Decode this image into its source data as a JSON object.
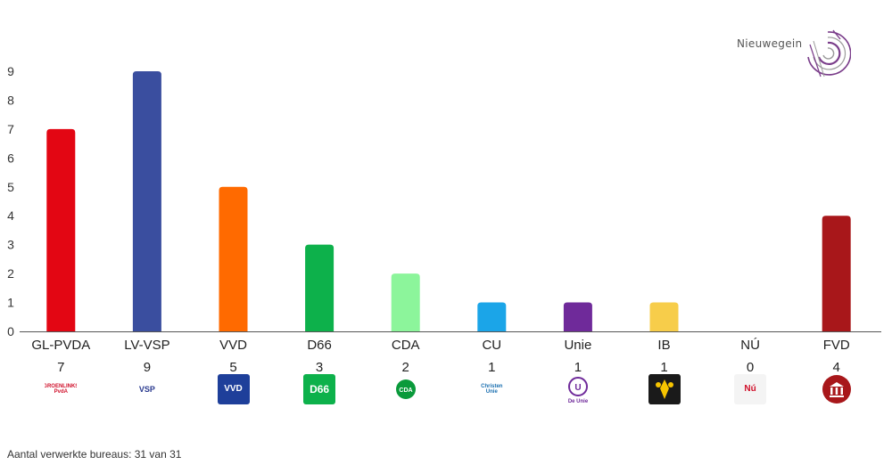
{
  "brand": {
    "name": "Nieuwegein"
  },
  "footer": {
    "label": "Aantal verwerkte bureaus: 31 van 31"
  },
  "chart_data": {
    "type": "bar",
    "title": "",
    "xlabel": "",
    "ylabel": "",
    "ylim": [
      0,
      9
    ],
    "yticks": [
      0,
      1,
      2,
      3,
      4,
      5,
      6,
      7,
      8,
      9
    ],
    "grid": false,
    "categories": [
      "GL-PVDA",
      "LV-VSP",
      "VVD",
      "D66",
      "CDA",
      "CU",
      "Unie",
      "IB",
      "NÚ",
      "FVD"
    ],
    "values": [
      7,
      9,
      5,
      3,
      2,
      1,
      1,
      1,
      0,
      4
    ],
    "colors": [
      "#e30613",
      "#3a4e9f",
      "#ff6a00",
      "#0db14b",
      "#8cf59b",
      "#1ba5e8",
      "#6f2a9a",
      "#f7cd4a",
      "#cccccc",
      "#a8171a"
    ]
  },
  "party_logos": [
    {
      "icon": "groenlinks-pvda-logo",
      "text": "GROENLINKS PvdA"
    },
    {
      "icon": "lokaal-vsp-logo",
      "text": "VSP"
    },
    {
      "icon": "vvd-logo",
      "text": "VVD"
    },
    {
      "icon": "d66-logo",
      "text": "D66"
    },
    {
      "icon": "cda-logo",
      "text": "CDA"
    },
    {
      "icon": "christenunie-logo",
      "text": "Christen Unie"
    },
    {
      "icon": "de-unie-logo",
      "text": "De Unie"
    },
    {
      "icon": "ib-logo",
      "text": ""
    },
    {
      "icon": "nu-logo",
      "text": "Nú"
    },
    {
      "icon": "fvd-logo",
      "text": ""
    }
  ]
}
